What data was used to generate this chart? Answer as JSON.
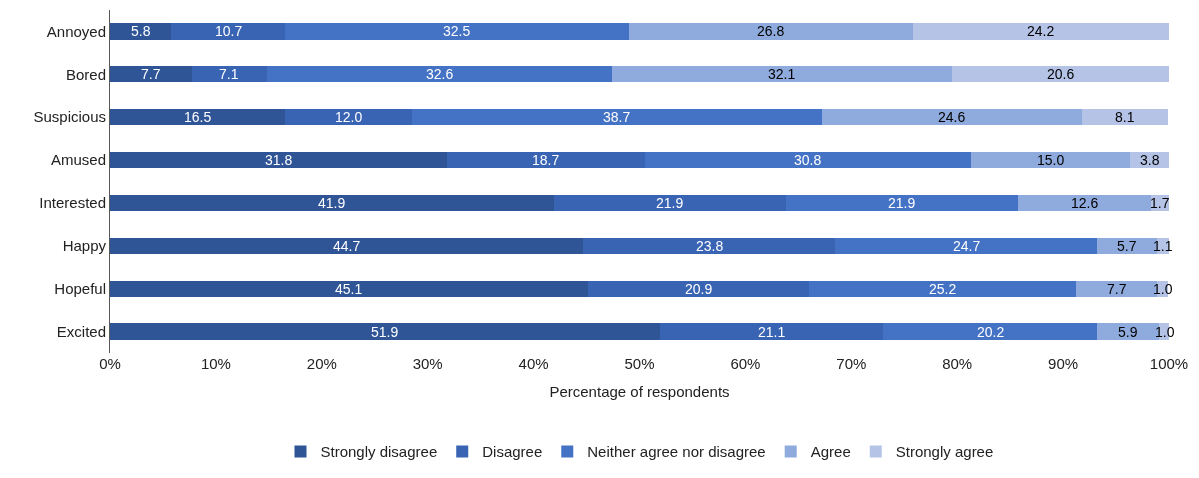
{
  "chart_data": {
    "type": "bar",
    "orientation": "horizontal",
    "stacked": true,
    "xlabel": "Percentage of respondents",
    "categories": [
      "Annoyed",
      "Bored",
      "Suspicious",
      "Amused",
      "Interested",
      "Happy",
      "Hopeful",
      "Excited"
    ],
    "series": [
      {
        "name": "Strongly disagree",
        "color": "#2f5597",
        "values": [
          5.8,
          7.7,
          16.5,
          31.8,
          41.9,
          44.7,
          45.1,
          51.9
        ],
        "value_labels": [
          "5.8",
          "7.7",
          "16.5",
          "31.8",
          "41.9",
          "44.7",
          "45.1",
          "51.9"
        ]
      },
      {
        "name": "Disagree",
        "color": "#3964b4",
        "values": [
          10.7,
          7.1,
          12.0,
          18.7,
          21.9,
          23.8,
          20.9,
          21.1
        ],
        "value_labels": [
          "10.7",
          "7.1",
          "12.0",
          "18.7",
          "21.9",
          "23.8",
          "20.9",
          "21.1"
        ]
      },
      {
        "name": "Neither agree nor disagree",
        "color": "#4472c4",
        "values": [
          32.5,
          32.6,
          38.7,
          30.8,
          21.9,
          24.7,
          25.2,
          20.2
        ],
        "value_labels": [
          "32.5",
          "32.6",
          "38.7",
          "30.8",
          "21.9",
          "24.7",
          "25.2",
          "20.2"
        ]
      },
      {
        "name": "Agree",
        "color": "#8faadc",
        "values": [
          26.8,
          32.1,
          24.6,
          15.0,
          12.6,
          5.7,
          7.7,
          5.9
        ],
        "value_labels": [
          "26.8",
          "32.1",
          "24.6",
          "15.0",
          "12.6",
          "5.7",
          "7.7",
          "5.9"
        ]
      },
      {
        "name": "Strongly agree",
        "color": "#b4c3e6",
        "values": [
          24.2,
          20.6,
          8.1,
          3.8,
          1.7,
          1.1,
          1.0,
          1.0
        ],
        "value_labels": [
          "24.2",
          "20.6",
          "8.1",
          "3.8",
          "1.7",
          "1.1",
          "1.0",
          "1.0"
        ]
      }
    ],
    "xlim": [
      0,
      100
    ],
    "xticks": [
      {
        "value": 0,
        "label": "0%"
      },
      {
        "value": 10,
        "label": "10%"
      },
      {
        "value": 20,
        "label": "20%"
      },
      {
        "value": 30,
        "label": "30%"
      },
      {
        "value": 40,
        "label": "40%"
      },
      {
        "value": 50,
        "label": "50%"
      },
      {
        "value": 60,
        "label": "60%"
      },
      {
        "value": 70,
        "label": "70%"
      },
      {
        "value": 80,
        "label": "80%"
      },
      {
        "value": 90,
        "label": "90%"
      },
      {
        "value": 100,
        "label": "100%"
      }
    ],
    "legend": "bottom",
    "grid": false
  }
}
